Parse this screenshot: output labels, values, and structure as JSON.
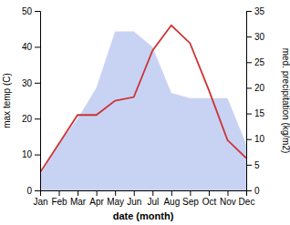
{
  "chart_data": {
    "type": "line",
    "categories": [
      "Jan",
      "Feb",
      "Mar",
      "Apr",
      "May",
      "Jun",
      "Jul",
      "Aug",
      "Sep",
      "Oct",
      "Nov",
      "Dec"
    ],
    "series": [
      {
        "type": "area",
        "axis": "y2",
        "color": "#aabbee",
        "values": [
          3,
          9,
          14,
          20,
          31,
          31,
          28,
          19,
          18,
          18,
          18,
          9
        ]
      },
      {
        "type": "line",
        "color": "#cc3333",
        "values": [
          5,
          13,
          21,
          21,
          25,
          26,
          39,
          46,
          41,
          28,
          14,
          9
        ]
      }
    ],
    "x_label": "date (month)",
    "y_label": "max temp (C)",
    "y2_label": "med. precipitation (kg/m2)",
    "ylim": [
      0,
      50
    ],
    "yticks": [
      0,
      10,
      20,
      30,
      40,
      50
    ],
    "y2lim": [
      0,
      35
    ],
    "y2ticks": [
      0,
      5,
      10,
      15,
      20,
      25,
      30,
      35
    ],
    "grid": false
  }
}
